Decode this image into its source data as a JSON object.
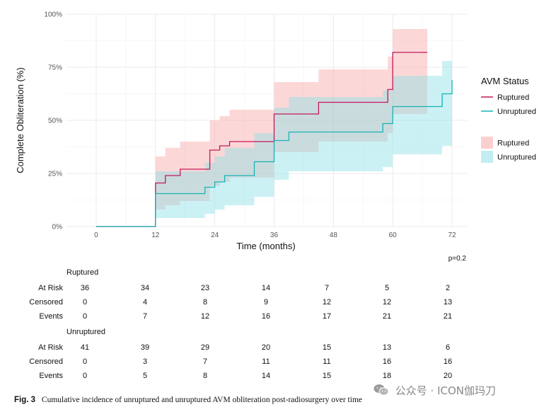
{
  "chart_data": {
    "type": "line",
    "step": true,
    "xlabel": "Time (months)",
    "ylabel": "Complete Obliteration (%)",
    "xlim": [
      -6,
      75
    ],
    "ylim": [
      0,
      100
    ],
    "x_ticks": [
      0,
      12,
      24,
      36,
      48,
      60,
      72
    ],
    "x_tick_labels": [
      "0",
      "12",
      "24",
      "36",
      "48",
      "60",
      "72"
    ],
    "y_ticks": [
      0,
      25,
      50,
      75,
      100
    ],
    "y_tick_labels": [
      "0%",
      "25%",
      "50%",
      "75%",
      "100%"
    ],
    "grid": true,
    "legend": {
      "title": "AVM Status",
      "placement": "right",
      "line_entries": [
        "Ruptured",
        "Unruptured"
      ],
      "fill_entries": [
        "Ruptured",
        "Unruptured"
      ]
    },
    "series": [
      {
        "name": "Ruptured",
        "color": "#c2185b",
        "band_color": "#f9a7a7",
        "x": [
          0,
          12,
          14,
          17,
          23,
          25,
          27,
          36,
          45,
          58,
          59,
          60,
          67
        ],
        "y": [
          0,
          20.5,
          24,
          27,
          36,
          38,
          40,
          53,
          58.5,
          58.5,
          64.5,
          82,
          82
        ],
        "lower": [
          0,
          8,
          10,
          12,
          19,
          21,
          23,
          35,
          40,
          40,
          44,
          53,
          53
        ],
        "upper": [
          0,
          33,
          37,
          40,
          50,
          52,
          55,
          68,
          74,
          74,
          80,
          93,
          93
        ]
      },
      {
        "name": "Unruptured",
        "color": "#17b3b3",
        "band_color": "#8fe0e6",
        "x": [
          0,
          12,
          22,
          24,
          26,
          32,
          36,
          39,
          58,
          60,
          70,
          72
        ],
        "y": [
          0,
          15.5,
          18.5,
          21,
          24,
          30.5,
          40.5,
          44.5,
          48.5,
          56.5,
          62.5,
          69
        ],
        "lower": [
          0,
          4,
          6,
          8,
          10,
          14,
          22,
          26,
          28,
          34,
          38,
          38
        ],
        "upper": [
          0,
          26,
          30,
          33,
          37,
          44,
          56,
          61,
          64,
          71,
          78,
          78
        ]
      }
    ],
    "p_value": "p=0.2",
    "risk_table": {
      "time_points": [
        0,
        12,
        24,
        36,
        48,
        60,
        72
      ],
      "groups": [
        {
          "name": "Ruptured",
          "rows": [
            {
              "label": "At Risk",
              "values": [
                36,
                34,
                23,
                14,
                7,
                5,
                2
              ]
            },
            {
              "label": "Censored",
              "values": [
                0,
                4,
                8,
                9,
                12,
                12,
                13
              ]
            },
            {
              "label": "Events",
              "values": [
                0,
                7,
                12,
                16,
                17,
                21,
                21
              ]
            }
          ]
        },
        {
          "name": "Unruptured",
          "rows": [
            {
              "label": "At Risk",
              "values": [
                41,
                39,
                29,
                20,
                15,
                13,
                6
              ]
            },
            {
              "label": "Censored",
              "values": [
                0,
                3,
                7,
                11,
                11,
                16,
                16
              ]
            },
            {
              "label": "Events",
              "values": [
                0,
                5,
                8,
                14,
                15,
                18,
                20
              ]
            }
          ]
        }
      ]
    }
  },
  "caption": {
    "label": "Fig. 3",
    "text": "Cumulative incidence of unruptured and unruptured AVM obliteration post-radiosurgery over time"
  },
  "watermark": {
    "text": "公众号 · ICON伽玛刀",
    "icon": "wechat-icon"
  }
}
